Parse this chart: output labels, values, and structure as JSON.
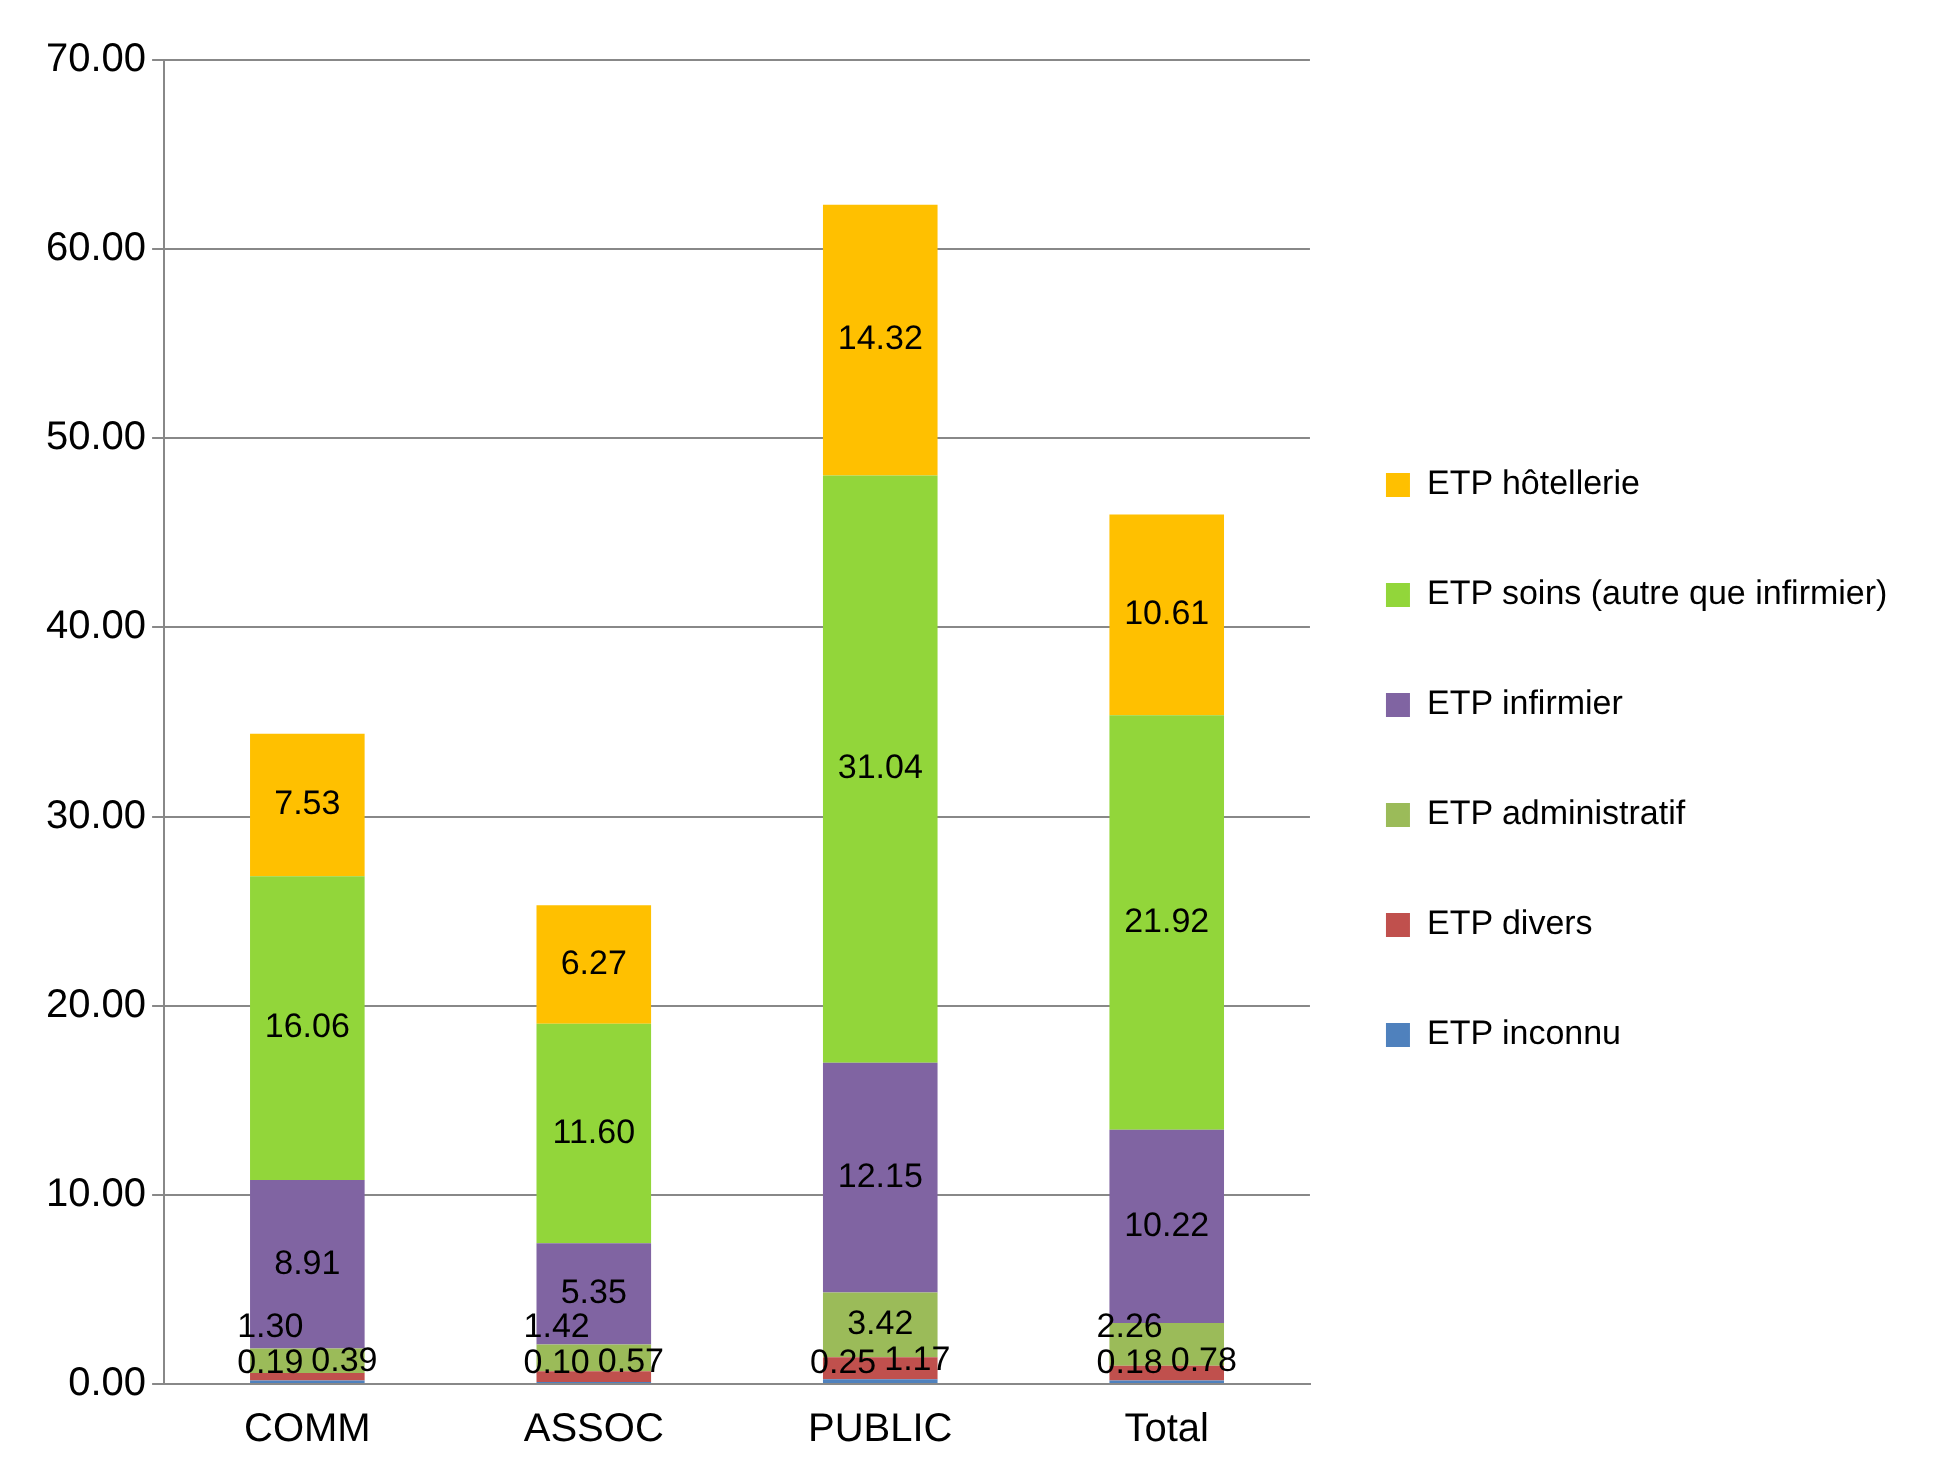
{
  "chart_data": {
    "type": "bar",
    "stacked": true,
    "categories": [
      "COMM",
      "ASSOC",
      "PUBLIC",
      "Total"
    ],
    "series": [
      {
        "name": "ETP inconnu",
        "color": "#4f81bd",
        "values": [
          0.19,
          0.1,
          0.25,
          0.18
        ],
        "value_labels": [
          "0.19",
          "0.10",
          "0.25",
          "0.18"
        ]
      },
      {
        "name": "ETP divers",
        "color": "#c0504d",
        "values": [
          0.39,
          0.57,
          1.17,
          0.78
        ],
        "value_labels": [
          "0.39",
          "0.57",
          "1.17",
          "0.78"
        ]
      },
      {
        "name": "ETP administratif",
        "color": "#9bbb59",
        "values": [
          1.3,
          1.42,
          3.42,
          2.26
        ],
        "value_labels": [
          "1.30",
          "1.42",
          "3.42",
          "2.26"
        ]
      },
      {
        "name": "ETP infirmier",
        "color": "#8064a2",
        "values": [
          8.91,
          5.35,
          12.15,
          10.22
        ],
        "value_labels": [
          "8.91",
          "5.35",
          "12.15",
          "10.22"
        ]
      },
      {
        "name": "ETP soins (autre que infirmier)",
        "color": "#92d63a",
        "values": [
          16.06,
          11.6,
          31.04,
          21.92
        ],
        "value_labels": [
          "16.06",
          "11.60",
          "31.04",
          "21.92"
        ]
      },
      {
        "name": "ETP hôtellerie",
        "color": "#ffc000",
        "values": [
          7.53,
          6.27,
          14.32,
          10.61
        ],
        "value_labels": [
          "7.53",
          "6.27",
          "14.32",
          "10.61"
        ]
      }
    ],
    "ylim": [
      0,
      70
    ],
    "yticks": [
      {
        "value": 0,
        "label": "0.00"
      },
      {
        "value": 10,
        "label": "10.00"
      },
      {
        "value": 20,
        "label": "20.00"
      },
      {
        "value": 30,
        "label": "30.00"
      },
      {
        "value": 40,
        "label": "40.00"
      },
      {
        "value": 50,
        "label": "50.00"
      },
      {
        "value": 60,
        "label": "60.00"
      },
      {
        "value": 70,
        "label": "70.00"
      }
    ],
    "grid": "y",
    "legend": "right"
  }
}
